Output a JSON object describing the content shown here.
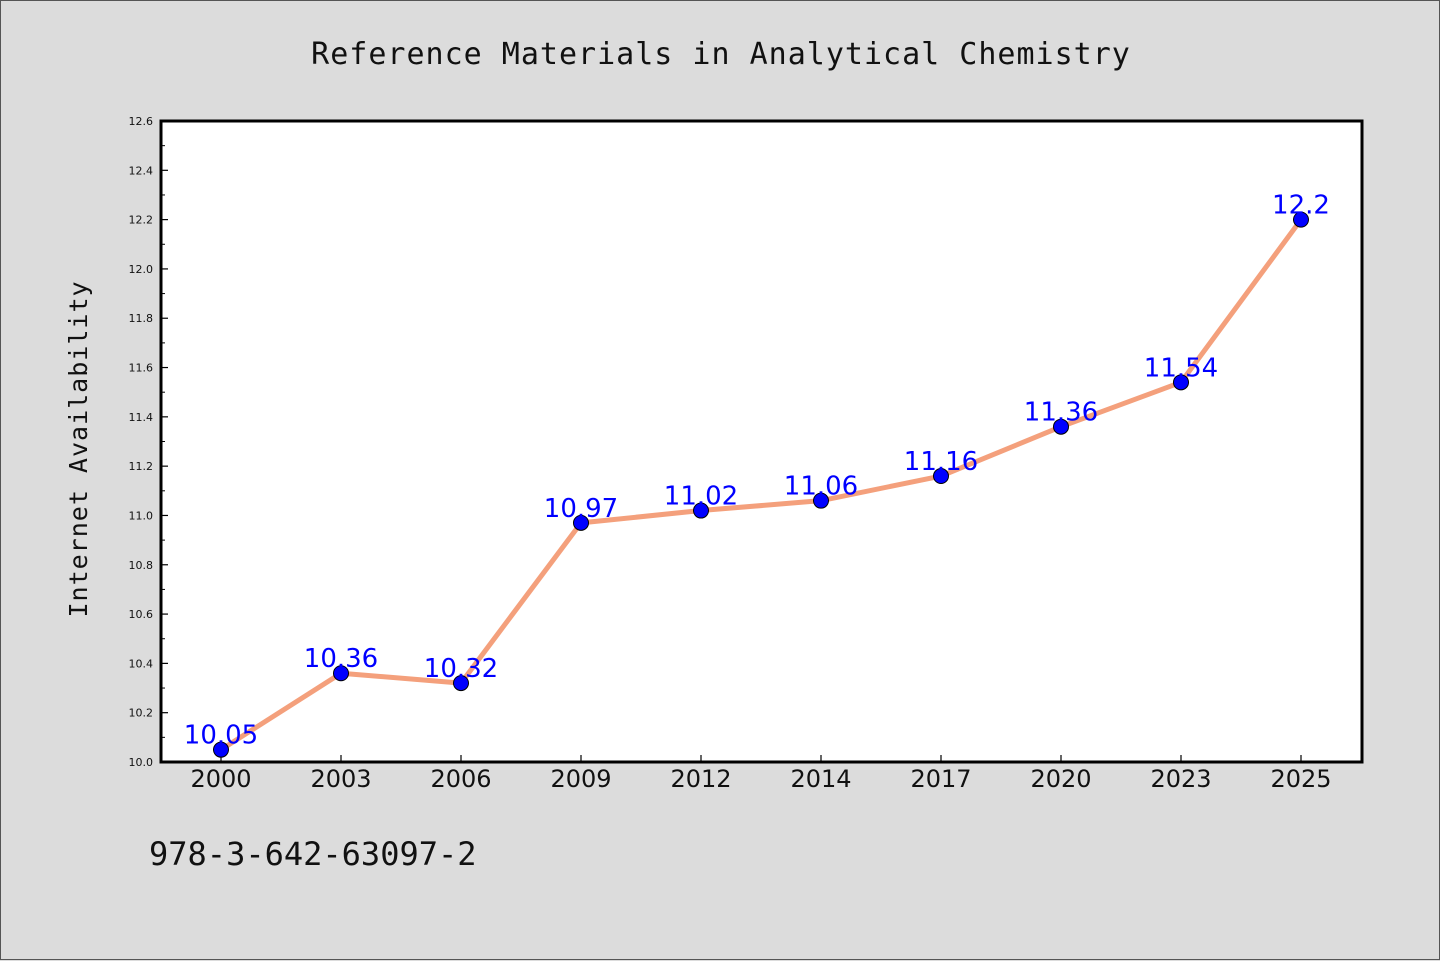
{
  "chart_data": {
    "type": "line",
    "title": "Reference Materials in Analytical Chemistry",
    "xlabel": "",
    "ylabel": "Internet Availability",
    "categories": [
      "2000",
      "2003",
      "2006",
      "2009",
      "2012",
      "2014",
      "2017",
      "2020",
      "2023",
      "2025"
    ],
    "series": [
      {
        "values": [
          10.05,
          10.36,
          10.32,
          10.97,
          11.02,
          11.06,
          11.16,
          11.36,
          11.54,
          12.2
        ],
        "data_labels": [
          "10.05",
          "10.36",
          "10.32",
          "10.97",
          "11.02",
          "11.06",
          "11.16",
          "11.36",
          "11.54",
          "12.2"
        ]
      }
    ],
    "ylim": [
      10.0,
      12.6
    ],
    "yticks": [
      "10.0",
      "10.2",
      "10.4",
      "10.6",
      "10.8",
      "11.0",
      "11.2",
      "11.4",
      "11.6",
      "11.8",
      "12.0",
      "12.2",
      "12.4",
      "12.6"
    ],
    "grid": false,
    "colors": {
      "line": "#f4a07c",
      "marker": "#0000ff",
      "data_label": "#0000ff",
      "background": "#dcdcdc",
      "plot_background": "#ffffff"
    }
  },
  "footer": {
    "isbn": "978-3-642-63097-2"
  }
}
